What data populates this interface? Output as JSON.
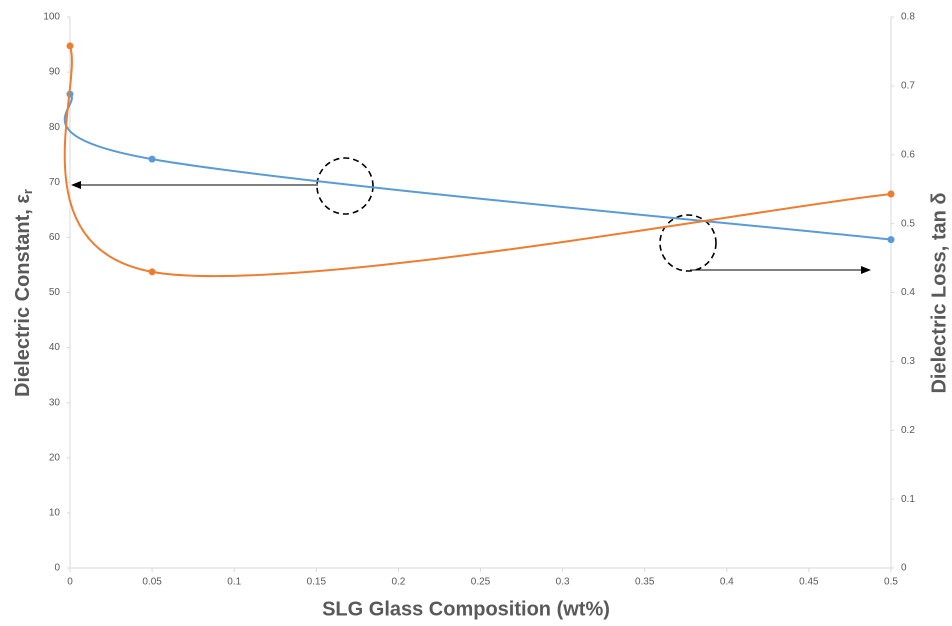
{
  "chart_data": {
    "type": "line",
    "xlabel": "SLG Glass Composition (wt%)",
    "ylabel": {
      "text": "Dielectric Constant, ε",
      "subscript": "r"
    },
    "y2label": "Dielectric Loss, tan δ",
    "x": [
      0,
      0.05,
      0.5
    ],
    "series": [
      {
        "color": "#5b9bd5",
        "values": [
          86,
          74.2,
          59.6
        ]
      },
      {
        "color": "#ed7d31",
        "values": [
          0.758,
          0.43,
          0.543
        ],
        "axis": "y2"
      }
    ],
    "xlim": [
      0,
      0.5
    ],
    "xticks": [
      0,
      0.05,
      0.1,
      0.15,
      0.2,
      0.25,
      0.3,
      0.35,
      0.4,
      0.45,
      0.5
    ],
    "ylim": [
      0,
      100
    ],
    "yticks": [
      0,
      10,
      20,
      30,
      40,
      50,
      60,
      70,
      80,
      90,
      100
    ],
    "y2lim": [
      0,
      0.8
    ],
    "y2ticks": [
      0,
      0.1,
      0.2,
      0.3,
      0.4,
      0.5,
      0.6,
      0.7,
      0.8
    ],
    "smooth": true
  }
}
